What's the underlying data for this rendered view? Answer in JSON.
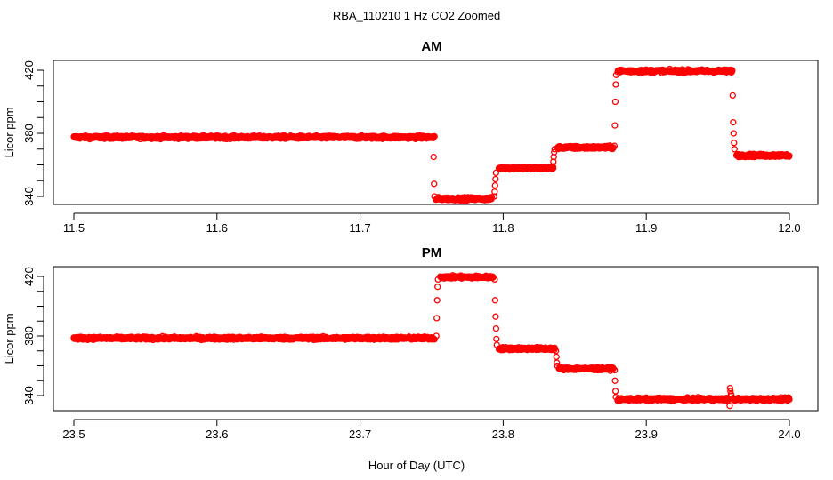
{
  "title": "RBA_110210  1 Hz CO2 Zoomed",
  "xlabel": "Hour of Day (UTC)",
  "chart_data": [
    {
      "type": "scatter",
      "title": "AM",
      "xlabel": "",
      "ylabel": "Licor ppm",
      "xlim": [
        11.5,
        12.0
      ],
      "ylim": [
        332,
        425
      ],
      "xticks": [
        "11.5",
        "11.6",
        "11.7",
        "11.8",
        "11.9",
        "12.0"
      ],
      "xtick_values": [
        11.5,
        11.6,
        11.7,
        11.8,
        11.9,
        12.0
      ],
      "yticks": [
        "340",
        "380",
        "420"
      ],
      "ytick_values": [
        340,
        380,
        420
      ],
      "grid": false,
      "color": "#ff0000",
      "marker": "open-circle",
      "segments": [
        {
          "x_start": 11.5,
          "x_end": 11.752,
          "y": 377.5
        },
        {
          "x_start": 11.753,
          "x_end": 11.792,
          "y": 338.5
        },
        {
          "x_start": 11.797,
          "x_end": 11.835,
          "y": 358
        },
        {
          "x_start": 11.838,
          "x_end": 11.877,
          "y": 371
        },
        {
          "x_start": 11.88,
          "x_end": 11.96,
          "y": 419.5
        },
        {
          "x_start": 11.963,
          "x_end": 12.0,
          "y": 366
        }
      ],
      "transitions": [
        {
          "x": 11.7515,
          "y": [
            378,
            377,
            365,
            348,
            340
          ]
        },
        {
          "x": 11.7945,
          "y": [
            340,
            343,
            347,
            351,
            355
          ]
        },
        {
          "x": 11.8355,
          "y": [
            359,
            362,
            365,
            368,
            370
          ]
        },
        {
          "x": 11.8785,
          "y": [
            372,
            385,
            400,
            411,
            417
          ]
        },
        {
          "x": 11.961,
          "y": [
            420,
            404,
            387,
            380,
            374,
            370
          ]
        }
      ]
    },
    {
      "type": "scatter",
      "title": "PM",
      "xlabel": "",
      "ylabel": "Licor ppm",
      "xlim": [
        23.5,
        24.0
      ],
      "ylim": [
        332,
        425
      ],
      "xticks": [
        "23.5",
        "23.6",
        "23.7",
        "23.8",
        "23.9",
        "24.0"
      ],
      "xtick_values": [
        23.5,
        23.6,
        23.7,
        23.8,
        23.9,
        24.0
      ],
      "yticks": [
        "340",
        "380",
        "420"
      ],
      "ytick_values": [
        340,
        380,
        420
      ],
      "grid": false,
      "color": "#ff0000",
      "marker": "open-circle",
      "segments": [
        {
          "x_start": 23.5,
          "x_end": 23.752,
          "y": 378.5
        },
        {
          "x_start": 23.756,
          "x_end": 23.793,
          "y": 419.5
        },
        {
          "x_start": 23.797,
          "x_end": 23.836,
          "y": 371.5
        },
        {
          "x_start": 23.839,
          "x_end": 23.877,
          "y": 358
        },
        {
          "x_start": 23.88,
          "x_end": 23.958,
          "y": 337.5
        },
        {
          "x_start": 23.96,
          "x_end": 24.0,
          "y": 337.5
        }
      ],
      "transitions": [
        {
          "x": 23.754,
          "y": [
            380,
            392,
            404,
            413,
            418
          ]
        },
        {
          "x": 23.795,
          "y": [
            418,
            404,
            393,
            385,
            378,
            374
          ]
        },
        {
          "x": 23.8375,
          "y": [
            370,
            366,
            362,
            360
          ]
        },
        {
          "x": 23.8785,
          "y": [
            357,
            350,
            343,
            339
          ]
        },
        {
          "x": 23.959,
          "y": [
            333,
            345,
            343,
            341,
            340
          ]
        }
      ]
    }
  ]
}
